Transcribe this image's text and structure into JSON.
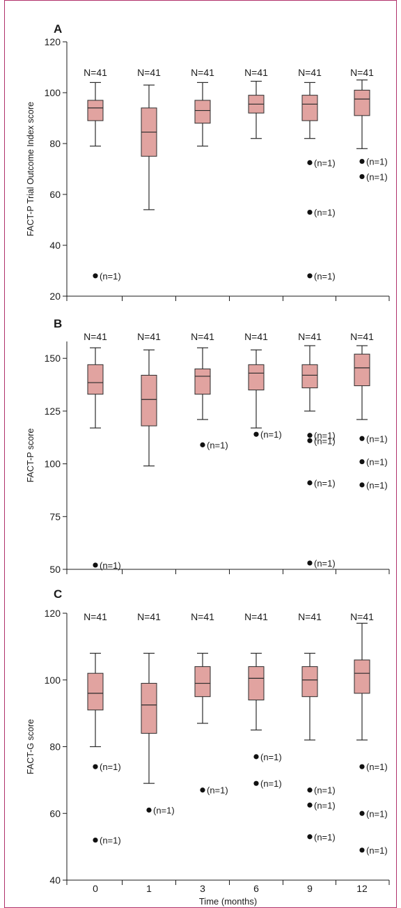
{
  "colors": {
    "box_fill": "#e1a3a0",
    "box_stroke": "#2b2b2b",
    "frame": "#b0306a",
    "axis": "#1a1a1a"
  },
  "chart_data": [
    {
      "type": "box",
      "panel_label": "A",
      "ylabel": "FACT-P Trial Outcome Index score",
      "xlabel": "",
      "ylim": [
        20,
        120
      ],
      "yticks": [
        20,
        40,
        60,
        80,
        100,
        120
      ],
      "categories": [
        "0",
        "1",
        "3",
        "6",
        "9",
        "12"
      ],
      "n_labels": [
        "N=41",
        "N=41",
        "N=41",
        "N=41",
        "N=41",
        "N=41"
      ],
      "boxes": [
        {
          "min": 79,
          "q1": 89,
          "median": 94,
          "q3": 97,
          "max": 104
        },
        {
          "min": 54,
          "q1": 75,
          "median": 84.5,
          "q3": 94,
          "max": 103
        },
        {
          "min": 79,
          "q1": 88,
          "median": 93,
          "q3": 97,
          "max": 104
        },
        {
          "min": 82,
          "q1": 92,
          "median": 95.5,
          "q3": 99,
          "max": 104.5
        },
        {
          "min": 82,
          "q1": 89,
          "median": 95.5,
          "q3": 99,
          "max": 104
        },
        {
          "min": 78,
          "q1": 91,
          "median": 97.5,
          "q3": 101,
          "max": 105
        }
      ],
      "outliers": [
        {
          "x": "0",
          "y": 28,
          "label": "(n=1)"
        },
        {
          "x": "9",
          "y": 72.5,
          "label": "(n=1)"
        },
        {
          "x": "9",
          "y": 53,
          "label": "(n=1)"
        },
        {
          "x": "9",
          "y": 28,
          "label": "(n=1)"
        },
        {
          "x": "12",
          "y": 73,
          "label": "(n=1)"
        },
        {
          "x": "12",
          "y": 67,
          "label": "(n=1)"
        }
      ]
    },
    {
      "type": "box",
      "panel_label": "B",
      "ylabel": "FACT-P score",
      "xlabel": "",
      "ylim": [
        50,
        158
      ],
      "yticks": [
        50,
        75,
        100,
        125,
        150
      ],
      "categories": [
        "0",
        "1",
        "3",
        "6",
        "9",
        "12"
      ],
      "n_labels": [
        "N=41",
        "N=41",
        "N=41",
        "N=41",
        "N=41",
        "N=41"
      ],
      "boxes": [
        {
          "min": 117,
          "q1": 133,
          "median": 138.5,
          "q3": 147,
          "max": 155
        },
        {
          "min": 99,
          "q1": 118,
          "median": 130.5,
          "q3": 142,
          "max": 154
        },
        {
          "min": 121,
          "q1": 133,
          "median": 141.5,
          "q3": 145,
          "max": 155
        },
        {
          "min": 117,
          "q1": 135,
          "median": 143,
          "q3": 147,
          "max": 154
        },
        {
          "min": 125,
          "q1": 136,
          "median": 142,
          "q3": 147,
          "max": 156
        },
        {
          "min": 121,
          "q1": 137,
          "median": 145.5,
          "q3": 152,
          "max": 156
        }
      ],
      "outliers": [
        {
          "x": "0",
          "y": 52,
          "label": "(n=1)"
        },
        {
          "x": "3",
          "y": 109,
          "label": "(n=1)"
        },
        {
          "x": "6",
          "y": 114,
          "label": "(n=1)"
        },
        {
          "x": "9",
          "y": 113.5,
          "label": "(n=1)"
        },
        {
          "x": "9",
          "y": 111,
          "label": "(n=1)"
        },
        {
          "x": "9",
          "y": 91,
          "label": "(n=1)"
        },
        {
          "x": "9",
          "y": 53,
          "label": "(n=1)"
        },
        {
          "x": "12",
          "y": 112,
          "label": "(n=1)"
        },
        {
          "x": "12",
          "y": 101,
          "label": "(n=1)"
        },
        {
          "x": "12",
          "y": 90,
          "label": "(n=1)"
        }
      ]
    },
    {
      "type": "box",
      "panel_label": "C",
      "ylabel": "FACT-G score",
      "xlabel": "Time (months)",
      "ylim": [
        40,
        120
      ],
      "yticks": [
        40,
        60,
        80,
        100,
        120
      ],
      "categories": [
        "0",
        "1",
        "3",
        "6",
        "9",
        "12"
      ],
      "n_labels": [
        "N=41",
        "N=41",
        "N=41",
        "N=41",
        "N=41",
        "N=41"
      ],
      "boxes": [
        {
          "min": 80,
          "q1": 91,
          "median": 96,
          "q3": 102,
          "max": 108
        },
        {
          "min": 69,
          "q1": 84,
          "median": 92.5,
          "q3": 99,
          "max": 108
        },
        {
          "min": 87,
          "q1": 95,
          "median": 99,
          "q3": 104,
          "max": 108
        },
        {
          "min": 85,
          "q1": 94,
          "median": 100.5,
          "q3": 104,
          "max": 108
        },
        {
          "min": 82,
          "q1": 95,
          "median": 100,
          "q3": 104,
          "max": 108
        },
        {
          "min": 82,
          "q1": 96,
          "median": 102,
          "q3": 106,
          "max": 117
        }
      ],
      "outliers": [
        {
          "x": "0",
          "y": 74,
          "label": "(n=1)"
        },
        {
          "x": "0",
          "y": 52,
          "label": "(n=1)"
        },
        {
          "x": "1",
          "y": 61,
          "label": "(n=1)"
        },
        {
          "x": "3",
          "y": 67,
          "label": "(n=1)"
        },
        {
          "x": "6",
          "y": 77,
          "label": "(n=1)"
        },
        {
          "x": "6",
          "y": 69,
          "label": "(n=1)"
        },
        {
          "x": "9",
          "y": 67,
          "label": "(n=1)"
        },
        {
          "x": "9",
          "y": 62.5,
          "label": "(n=1)"
        },
        {
          "x": "9",
          "y": 53,
          "label": "(n=1)"
        },
        {
          "x": "12",
          "y": 74,
          "label": "(n=1)"
        },
        {
          "x": "12",
          "y": 60,
          "label": "(n=1)"
        },
        {
          "x": "12",
          "y": 49,
          "label": "(n=1)"
        }
      ]
    }
  ]
}
